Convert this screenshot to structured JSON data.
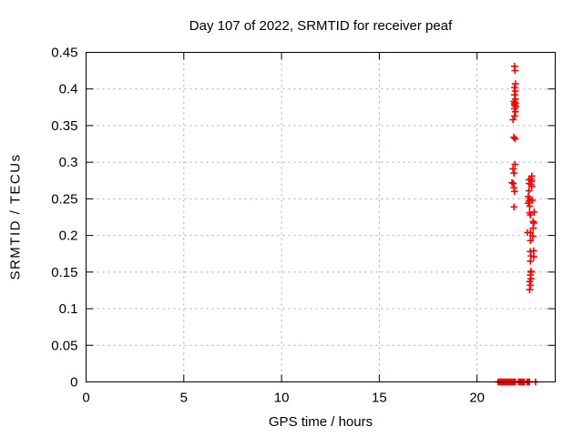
{
  "chart_data": {
    "type": "scatter",
    "title": "Day 107 of 2022, SRMTID for receiver peaf",
    "xlabel": "GPS time / hours",
    "ylabel": "SRMTID / TECUs",
    "xlim": [
      0,
      24
    ],
    "ylim": [
      0,
      0.45
    ],
    "x_ticks": [
      0,
      5,
      10,
      15,
      20
    ],
    "x_tick_labels": [
      "0",
      "5",
      "10",
      "15",
      "20"
    ],
    "y_ticks": [
      0,
      0.05,
      0.1,
      0.15,
      0.2,
      0.25,
      0.3,
      0.35,
      0.4,
      0.45
    ],
    "y_tick_labels": [
      "0",
      "0.05",
      "0.1",
      "0.15",
      "0.2",
      "0.25",
      "0.3",
      "0.35",
      "0.4",
      "0.45"
    ],
    "grid": true,
    "legend": "none",
    "marker": "plus",
    "marker_color": "#ff0000",
    "grid_color": "#a8a8a8",
    "border_color": "#000000",
    "series": [
      {
        "name": "SRMTID",
        "points": [
          [
            21.92,
            0.431
          ],
          [
            21.94,
            0.425
          ],
          [
            21.96,
            0.407
          ],
          [
            21.92,
            0.402
          ],
          [
            21.96,
            0.397
          ],
          [
            21.92,
            0.392
          ],
          [
            21.96,
            0.386
          ],
          [
            21.89,
            0.383
          ],
          [
            21.96,
            0.381
          ],
          [
            21.92,
            0.38
          ],
          [
            21.92,
            0.378
          ],
          [
            21.98,
            0.376
          ],
          [
            21.92,
            0.373
          ],
          [
            21.96,
            0.369
          ],
          [
            21.92,
            0.363
          ],
          [
            21.84,
            0.358
          ],
          [
            21.88,
            0.334
          ],
          [
            21.95,
            0.332
          ],
          [
            21.94,
            0.297
          ],
          [
            21.84,
            0.291
          ],
          [
            21.89,
            0.285
          ],
          [
            21.79,
            0.272
          ],
          [
            21.85,
            0.271
          ],
          [
            21.89,
            0.265
          ],
          [
            21.92,
            0.26
          ],
          [
            21.89,
            0.239
          ],
          [
            22.66,
            0.276
          ],
          [
            22.66,
            0.271
          ],
          [
            22.76,
            0.277
          ],
          [
            22.8,
            0.281
          ],
          [
            22.8,
            0.274
          ],
          [
            22.76,
            0.27
          ],
          [
            22.8,
            0.267
          ],
          [
            22.66,
            0.261
          ],
          [
            22.62,
            0.253
          ],
          [
            22.69,
            0.25
          ],
          [
            22.66,
            0.247
          ],
          [
            22.83,
            0.248
          ],
          [
            22.62,
            0.244
          ],
          [
            22.69,
            0.24
          ],
          [
            22.92,
            0.232
          ],
          [
            22.69,
            0.231
          ],
          [
            22.73,
            0.228
          ],
          [
            22.87,
            0.219
          ],
          [
            22.9,
            0.217
          ],
          [
            22.87,
            0.21
          ],
          [
            22.58,
            0.204
          ],
          [
            22.73,
            0.204
          ],
          [
            22.85,
            0.199
          ],
          [
            22.73,
            0.193
          ],
          [
            22.9,
            0.179
          ],
          [
            22.73,
            0.178
          ],
          [
            22.76,
            0.172
          ],
          [
            22.9,
            0.171
          ],
          [
            22.73,
            0.165
          ],
          [
            22.76,
            0.151
          ],
          [
            22.76,
            0.15
          ],
          [
            22.73,
            0.146
          ],
          [
            22.76,
            0.141
          ],
          [
            22.69,
            0.137
          ],
          [
            22.73,
            0.132
          ],
          [
            22.69,
            0.126
          ],
          [
            21.08,
            0
          ],
          [
            21.14,
            0
          ],
          [
            21.2,
            0
          ],
          [
            21.26,
            0
          ],
          [
            21.32,
            0
          ],
          [
            21.38,
            0
          ],
          [
            21.44,
            0
          ],
          [
            21.5,
            0
          ],
          [
            21.56,
            0
          ],
          [
            21.62,
            0
          ],
          [
            21.68,
            0
          ],
          [
            21.74,
            0
          ],
          [
            21.8,
            0
          ],
          [
            21.86,
            0
          ],
          [
            21.92,
            0
          ],
          [
            21.96,
            0
          ],
          [
            22.12,
            0
          ],
          [
            22.18,
            0
          ],
          [
            22.24,
            0
          ],
          [
            22.3,
            0
          ],
          [
            22.36,
            0
          ],
          [
            22.42,
            0
          ],
          [
            22.56,
            0
          ],
          [
            22.62,
            0
          ],
          [
            22.68,
            0
          ],
          [
            22.99,
            0
          ]
        ]
      }
    ]
  }
}
